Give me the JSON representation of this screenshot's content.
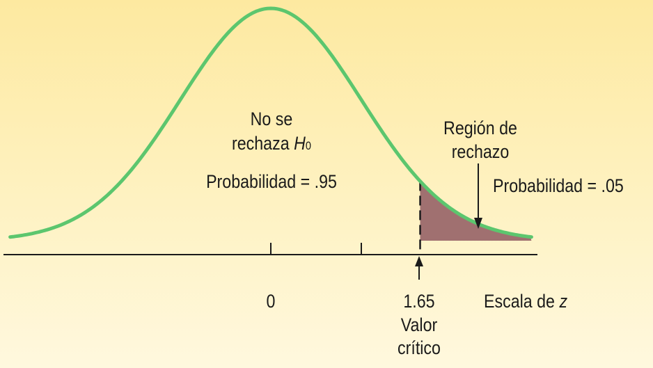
{
  "labels": {
    "accept_line1": "No se",
    "accept_line2": "rechaza",
    "h_symbol": "H",
    "h_subscript": "0",
    "accept_probability": "Probabilidad = .95",
    "rejection_line1": "Región de",
    "rejection_line2": "rechazo",
    "rejection_probability": "Probabilidad = .05",
    "tick_zero": "0",
    "tick_critical": "1.65",
    "critical_line1": "Valor",
    "critical_line2": "crítico",
    "scale_prefix": "Escala de",
    "scale_variable": "z"
  },
  "colors": {
    "curve": "#5cc66e",
    "rejection_fill": "#a07070",
    "axis": "#1a1a1a",
    "background_top": "#fde9a0",
    "background_bottom": "#fff8de"
  },
  "chart_data": {
    "type": "area",
    "distribution": "normal",
    "mean": 0,
    "critical_value": 1.65,
    "accept_probability": 0.95,
    "reject_probability": 0.05,
    "xlim": [
      -2.88,
      2.88
    ],
    "tail": "right"
  }
}
